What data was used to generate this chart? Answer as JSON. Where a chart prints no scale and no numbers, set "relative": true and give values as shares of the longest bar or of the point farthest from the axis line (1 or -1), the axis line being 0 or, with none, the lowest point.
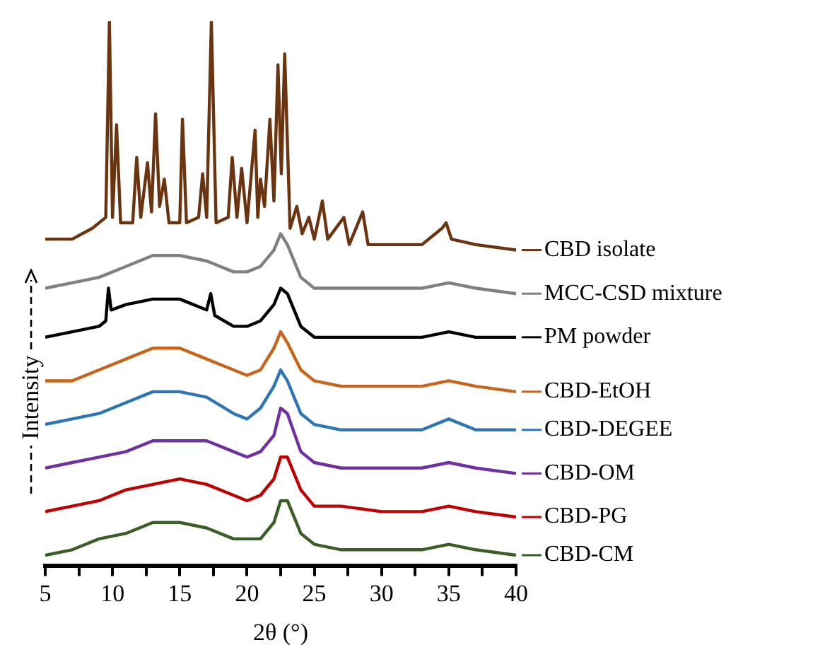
{
  "chart_data": {
    "type": "line",
    "relative": true,
    "xlabel": "2θ (°)",
    "ylabel": "Intensity",
    "xlim": [
      5,
      40
    ],
    "xticks": [
      5,
      {
        "value": 7.5,
        "label": null
      },
      10,
      {
        "value": 12.5,
        "label": null
      },
      15,
      {
        "value": 17.5,
        "label": null
      },
      20,
      {
        "value": 22.5,
        "label": null
      },
      25,
      {
        "value": 27.5,
        "label": null
      },
      30,
      {
        "value": 32.5,
        "label": null
      },
      35,
      {
        "value": 37.5,
        "label": null
      },
      40
    ],
    "grid": false,
    "legend": "right",
    "x": [
      5,
      7,
      9,
      11,
      13,
      15,
      17,
      19,
      20,
      21,
      22,
      22.5,
      23,
      24,
      25,
      27,
      30,
      33,
      35,
      37,
      40
    ],
    "series": [
      {
        "name": "CBD isolate",
        "color": "#6b3410",
        "x": [
          5,
          7,
          8.5,
          9.5,
          9.77,
          10.0,
          10.3,
          10.6,
          11.5,
          11.8,
          12.1,
          12.6,
          12.9,
          13.2,
          13.5,
          13.85,
          14.2,
          15.0,
          15.2,
          15.5,
          16.4,
          16.7,
          17.0,
          17.35,
          17.7,
          18.6,
          18.9,
          19.25,
          19.6,
          20.0,
          20.6,
          20.8,
          21.0,
          21.3,
          21.7,
          22.0,
          22.3,
          22.55,
          22.8,
          23.2,
          23.7,
          24.1,
          24.6,
          25.0,
          25.6,
          26.0,
          27.2,
          27.6,
          28.6,
          29.0,
          31,
          33,
          34.5,
          34.8,
          35.2,
          37,
          40
        ],
        "values": [
          0.6,
          0.6,
          0.62,
          0.64,
          1,
          0.64,
          0.81,
          0.63,
          0.63,
          0.75,
          0.64,
          0.74,
          0.65,
          0.83,
          0.66,
          0.71,
          0.63,
          0.63,
          0.82,
          0.63,
          0.64,
          0.72,
          0.64,
          1,
          0.63,
          0.64,
          0.75,
          0.64,
          0.73,
          0.63,
          0.8,
          0.64,
          0.71,
          0.66,
          0.82,
          0.67,
          0.92,
          0.72,
          0.94,
          0.62,
          0.66,
          0.61,
          0.64,
          0.6,
          0.67,
          0.6,
          0.64,
          0.59,
          0.65,
          0.59,
          0.59,
          0.59,
          0.62,
          0.63,
          0.6,
          0.59,
          0.58
        ]
      },
      {
        "name": "MCC-CSD mixture",
        "color": "#808080",
        "values": [
          0.51,
          0.52,
          0.53,
          0.55,
          0.57,
          0.57,
          0.56,
          0.54,
          0.54,
          0.55,
          0.58,
          0.61,
          0.59,
          0.53,
          0.51,
          0.51,
          0.51,
          0.51,
          0.52,
          0.51,
          0.5
        ]
      },
      {
        "name": "PM powder",
        "color": "#000000",
        "x": [
          5,
          7,
          9,
          9.5,
          9.7,
          9.9,
          11,
          13,
          15,
          17,
          17.3,
          17.6,
          19,
          20,
          21,
          22,
          22.5,
          23,
          24,
          25,
          27,
          30,
          33,
          35,
          37,
          40
        ],
        "values": [
          0.42,
          0.43,
          0.44,
          0.45,
          0.51,
          0.47,
          0.48,
          0.49,
          0.49,
          0.47,
          0.5,
          0.46,
          0.44,
          0.44,
          0.45,
          0.48,
          0.51,
          0.5,
          0.44,
          0.42,
          0.42,
          0.42,
          0.42,
          0.43,
          0.42,
          0.42
        ]
      },
      {
        "name": "CBD-EtOH",
        "color": "#c8651c",
        "values": [
          0.34,
          0.34,
          0.36,
          0.38,
          0.4,
          0.4,
          0.38,
          0.36,
          0.35,
          0.36,
          0.4,
          0.43,
          0.41,
          0.36,
          0.34,
          0.33,
          0.33,
          0.33,
          0.34,
          0.33,
          0.32
        ]
      },
      {
        "name": "CBD-DEGEE",
        "color": "#2e75b6",
        "values": [
          0.26,
          0.27,
          0.28,
          0.3,
          0.32,
          0.32,
          0.31,
          0.28,
          0.27,
          0.29,
          0.33,
          0.36,
          0.34,
          0.28,
          0.26,
          0.25,
          0.25,
          0.25,
          0.27,
          0.25,
          0.25
        ]
      },
      {
        "name": "CBD-OM",
        "color": "#7030a0",
        "values": [
          0.18,
          0.19,
          0.2,
          0.21,
          0.23,
          0.23,
          0.23,
          0.21,
          0.2,
          0.21,
          0.24,
          0.29,
          0.28,
          0.21,
          0.19,
          0.18,
          0.18,
          0.18,
          0.19,
          0.18,
          0.17
        ]
      },
      {
        "name": "CBD-PG",
        "color": "#c00000",
        "values": [
          0.1,
          0.11,
          0.12,
          0.14,
          0.15,
          0.16,
          0.15,
          0.13,
          0.12,
          0.13,
          0.16,
          0.2,
          0.2,
          0.14,
          0.11,
          0.11,
          0.1,
          0.1,
          0.11,
          0.1,
          0.09
        ]
      },
      {
        "name": "CBD-CM",
        "color": "#3a5e26",
        "values": [
          0.02,
          0.03,
          0.05,
          0.06,
          0.08,
          0.08,
          0.07,
          0.05,
          0.05,
          0.05,
          0.08,
          0.12,
          0.12,
          0.06,
          0.04,
          0.03,
          0.03,
          0.03,
          0.04,
          0.03,
          0.02
        ]
      }
    ]
  }
}
